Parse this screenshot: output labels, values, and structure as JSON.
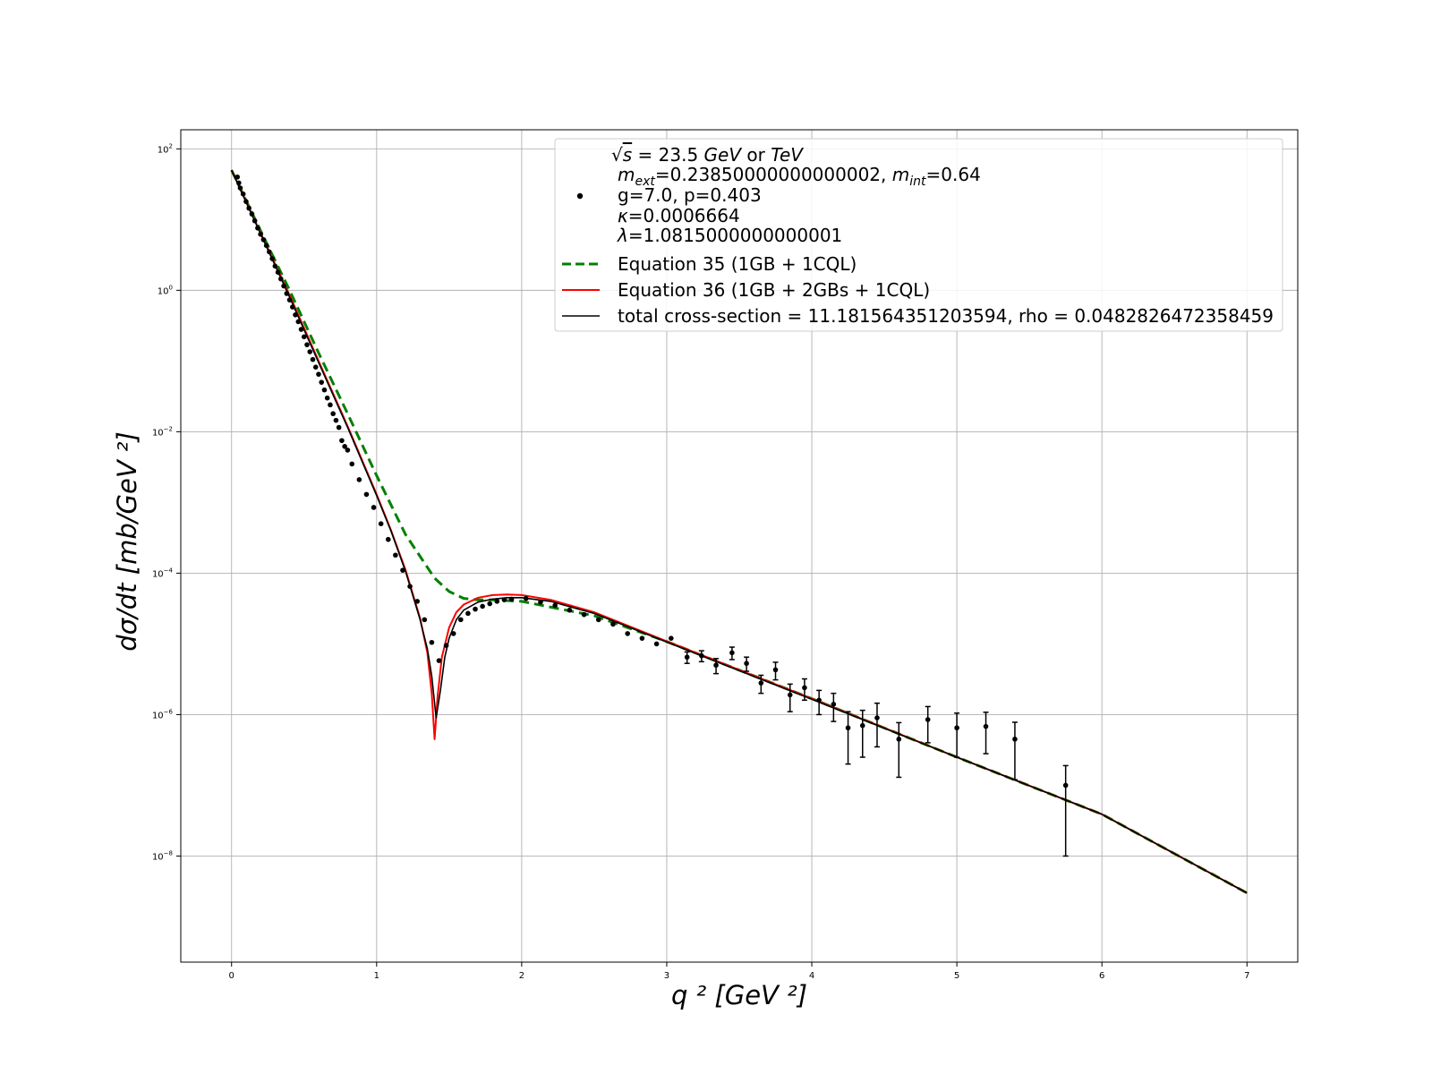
{
  "chart_data": {
    "type": "scatter",
    "title": "",
    "xlabel": "q ² [GeV ²]",
    "ylabel": "dσ/dt  [mb/GeV ²]",
    "xlim": [
      -0.35,
      7.35
    ],
    "ylim_log10": [
      -9.5,
      2.27
    ],
    "yscale": "log",
    "grid": true,
    "legend_position": "top-right",
    "x_ticks": [
      "0",
      "1",
      "2",
      "3",
      "4",
      "5",
      "6",
      "7"
    ],
    "y_ticks": [
      {
        "base": "10",
        "exp": "2"
      },
      {
        "base": "10",
        "exp": "0"
      },
      {
        "base": "10",
        "exp": "−2"
      },
      {
        "base": "10",
        "exp": "−4"
      },
      {
        "base": "10",
        "exp": "−6"
      },
      {
        "base": "10",
        "exp": "−8"
      }
    ],
    "legend": {
      "data_entry": {
        "line1_pre": "√",
        "line1_s": "s",
        "line1_mid": " = 23.5 ",
        "line1_gev": "GeV",
        "line1_or": " or ",
        "line1_tev": "TeV",
        "line2_m1": "m",
        "line2_sub1": "ext",
        "line2_val1": "=0.23850000000000002, ",
        "line2_m2": "m",
        "line2_sub2": "int",
        "line2_val2": "=0.64",
        "line3": "g=7.0, p=0.403",
        "line4_sym": "κ",
        "line4_val": "=0.0006664",
        "line5_sym": "λ",
        "line5_val": "=1.0815000000000001"
      },
      "series_labels": [
        "Equation 35 (1GB + 1CQL)",
        "Equation 36 (1GB + 2GBs + 1CQL)",
        "total cross-section = 11.181564351203594, rho = 0.0482826472358459"
      ]
    },
    "colors": {
      "data": "#000000",
      "equation_35": "#008000",
      "equation_36": "#ff0000",
      "total": "#000000",
      "grid": "#b0b0b0"
    },
    "data_points": [
      {
        "x": 0.04,
        "y": 40.0
      },
      {
        "x": 0.05,
        "y": 33.0
      },
      {
        "x": 0.06,
        "y": 28.0
      },
      {
        "x": 0.08,
        "y": 23.0
      },
      {
        "x": 0.1,
        "y": 18.0
      },
      {
        "x": 0.12,
        "y": 14.5
      },
      {
        "x": 0.14,
        "y": 12.0
      },
      {
        "x": 0.16,
        "y": 9.6
      },
      {
        "x": 0.18,
        "y": 7.6
      },
      {
        "x": 0.2,
        "y": 6.2
      },
      {
        "x": 0.22,
        "y": 5.2
      },
      {
        "x": 0.24,
        "y": 4.3
      },
      {
        "x": 0.26,
        "y": 3.5
      },
      {
        "x": 0.28,
        "y": 2.8
      },
      {
        "x": 0.3,
        "y": 2.2
      },
      {
        "x": 0.32,
        "y": 1.8
      },
      {
        "x": 0.34,
        "y": 1.45
      },
      {
        "x": 0.36,
        "y": 1.15
      },
      {
        "x": 0.38,
        "y": 0.9
      },
      {
        "x": 0.4,
        "y": 0.73
      },
      {
        "x": 0.42,
        "y": 0.58
      },
      {
        "x": 0.44,
        "y": 0.45
      },
      {
        "x": 0.46,
        "y": 0.36
      },
      {
        "x": 0.48,
        "y": 0.28
      },
      {
        "x": 0.5,
        "y": 0.22
      },
      {
        "x": 0.52,
        "y": 0.17
      },
      {
        "x": 0.54,
        "y": 0.135
      },
      {
        "x": 0.56,
        "y": 0.105
      },
      {
        "x": 0.58,
        "y": 0.082
      },
      {
        "x": 0.6,
        "y": 0.065
      },
      {
        "x": 0.62,
        "y": 0.05
      },
      {
        "x": 0.64,
        "y": 0.039
      },
      {
        "x": 0.66,
        "y": 0.03
      },
      {
        "x": 0.68,
        "y": 0.024
      },
      {
        "x": 0.7,
        "y": 0.018
      },
      {
        "x": 0.72,
        "y": 0.0145
      },
      {
        "x": 0.74,
        "y": 0.0115
      },
      {
        "x": 0.76,
        "y": 0.0075
      },
      {
        "x": 0.78,
        "y": 0.0062
      },
      {
        "x": 0.8,
        "y": 0.0055
      },
      {
        "x": 0.83,
        "y": 0.0035
      },
      {
        "x": 0.88,
        "y": 0.0021
      },
      {
        "x": 0.93,
        "y": 0.0013
      },
      {
        "x": 0.98,
        "y": 0.00085
      },
      {
        "x": 1.03,
        "y": 0.0005
      },
      {
        "x": 1.08,
        "y": 0.0003
      },
      {
        "x": 1.13,
        "y": 0.00018
      },
      {
        "x": 1.18,
        "y": 0.00011
      },
      {
        "x": 1.23,
        "y": 6.5e-05
      },
      {
        "x": 1.28,
        "y": 4e-05
      },
      {
        "x": 1.33,
        "y": 2.2e-05
      },
      {
        "x": 1.38,
        "y": 1.05e-05
      },
      {
        "x": 1.43,
        "y": 5.8e-06
      },
      {
        "x": 1.48,
        "y": 9.5e-06
      },
      {
        "x": 1.53,
        "y": 1.4e-05
      },
      {
        "x": 1.58,
        "y": 2.2e-05
      },
      {
        "x": 1.63,
        "y": 2.7e-05
      },
      {
        "x": 1.68,
        "y": 3.1e-05
      },
      {
        "x": 1.73,
        "y": 3.4e-05
      },
      {
        "x": 1.78,
        "y": 3.7e-05
      },
      {
        "x": 1.83,
        "y": 4e-05
      },
      {
        "x": 1.88,
        "y": 4.2e-05
      },
      {
        "x": 1.93,
        "y": 4.3e-05
      },
      {
        "x": 2.03,
        "y": 4.4e-05
      },
      {
        "x": 2.13,
        "y": 3.9e-05
      },
      {
        "x": 2.23,
        "y": 3.5e-05
      },
      {
        "x": 2.33,
        "y": 3e-05
      },
      {
        "x": 2.43,
        "y": 2.6e-05
      },
      {
        "x": 2.53,
        "y": 2.2e-05
      },
      {
        "x": 2.63,
        "y": 1.9e-05
      },
      {
        "x": 2.73,
        "y": 1.4e-05
      },
      {
        "x": 2.83,
        "y": 1.2e-05
      },
      {
        "x": 2.93,
        "y": 1e-05
      },
      {
        "x": 3.03,
        "y": 1.2e-05
      },
      {
        "x": 3.14,
        "y": 6.5e-06,
        "err": 1.2e-06
      },
      {
        "x": 3.24,
        "y": 6.8e-06,
        "err": 1.2e-06
      },
      {
        "x": 3.34,
        "y": 5e-06,
        "err": 1.2e-06
      },
      {
        "x": 3.45,
        "y": 7.5e-06,
        "err": 1.5e-06
      },
      {
        "x": 3.55,
        "y": 5.3e-06,
        "err": 1.2e-06
      },
      {
        "x": 3.65,
        "y": 2.8e-06,
        "err": 8e-07
      },
      {
        "x": 3.75,
        "y": 4.3e-06,
        "err": 1.2e-06
      },
      {
        "x": 3.85,
        "y": 1.9e-06,
        "err": 8e-07
      },
      {
        "x": 3.95,
        "y": 2.4e-06,
        "err": 8e-07
      },
      {
        "x": 4.05,
        "y": 1.6e-06,
        "err": 6e-07
      },
      {
        "x": 4.15,
        "y": 1.4e-06,
        "err": 6e-07
      },
      {
        "x": 4.25,
        "y": 6.5e-07,
        "err": 4.5e-07
      },
      {
        "x": 4.35,
        "y": 7e-07,
        "err": 4.5e-07
      },
      {
        "x": 4.45,
        "y": 9e-07,
        "err": 5.5e-07
      },
      {
        "x": 4.6,
        "y": 4.5e-07,
        "err": 3.2e-07
      },
      {
        "x": 4.8,
        "y": 8.5e-07,
        "err": 4.5e-07
      },
      {
        "x": 5.0,
        "y": 6.5e-07,
        "err": 4e-07
      },
      {
        "x": 5.2,
        "y": 6.8e-07,
        "err": 4e-07
      },
      {
        "x": 5.4,
        "y": 4.5e-07,
        "err": 3.3e-07
      },
      {
        "x": 5.75,
        "y": 1e-07,
        "err": 9e-08
      }
    ],
    "equation_35": {
      "x": [
        0.0,
        0.2,
        0.4,
        0.6,
        0.8,
        1.0,
        1.2,
        1.4,
        1.5,
        1.6,
        1.7,
        1.8,
        2.0,
        2.5,
        3.0,
        4.0,
        5.0,
        6.0,
        7.0
      ],
      "y": [
        50,
        7.0,
        1.0,
        0.13,
        0.018,
        0.0024,
        0.00035,
        8.5e-05,
        5.5e-05,
        4.4e-05,
        4.2e-05,
        4.2e-05,
        4e-05,
        2.5e-05,
        1.08e-05,
        1.68e-06,
        2.5e-07,
        3.9e-08,
        3e-09
      ]
    },
    "equation_36": {
      "x": [
        0.0,
        0.2,
        0.4,
        0.6,
        0.8,
        1.0,
        1.1,
        1.2,
        1.3,
        1.35,
        1.38,
        1.4,
        1.42,
        1.45,
        1.5,
        1.55,
        1.6,
        1.7,
        1.8,
        1.9,
        2.0,
        2.2,
        2.5,
        3.0,
        4.0,
        5.0,
        6.0,
        7.0
      ],
      "y": [
        50,
        6.5,
        0.85,
        0.1,
        0.012,
        0.0013,
        0.0004,
        0.00011,
        2.3e-05,
        7.5e-06,
        2e-06,
        4.5e-07,
        1.8e-06,
        6.5e-06,
        1.7e-05,
        2.8e-05,
        3.6e-05,
        4.5e-05,
        4.9e-05,
        5e-05,
        4.9e-05,
        4.2e-05,
        2.8e-05,
        1.09e-05,
        1.68e-06,
        2.5e-07,
        3.9e-08,
        3e-09
      ]
    },
    "total": {
      "x": [
        0.0,
        0.2,
        0.4,
        0.6,
        0.8,
        1.0,
        1.1,
        1.2,
        1.3,
        1.35,
        1.38,
        1.41,
        1.44,
        1.47,
        1.5,
        1.55,
        1.6,
        1.7,
        1.8,
        1.9,
        2.0,
        2.2,
        2.5,
        3.0,
        4.0,
        5.0,
        6.0,
        7.0
      ],
      "y": [
        50,
        6.3,
        0.8,
        0.095,
        0.0115,
        0.00125,
        0.00039,
        0.000105,
        2.2e-05,
        8.5e-06,
        3.5e-06,
        9e-07,
        2.2e-06,
        6.5e-06,
        1.2e-05,
        2.2e-05,
        3e-05,
        3.9e-05,
        4.3e-05,
        4.5e-05,
        4.5e-05,
        4e-05,
        2.7e-05,
        1.06e-05,
        1.65e-06,
        2.5e-07,
        3.9e-08,
        3e-09
      ]
    }
  }
}
